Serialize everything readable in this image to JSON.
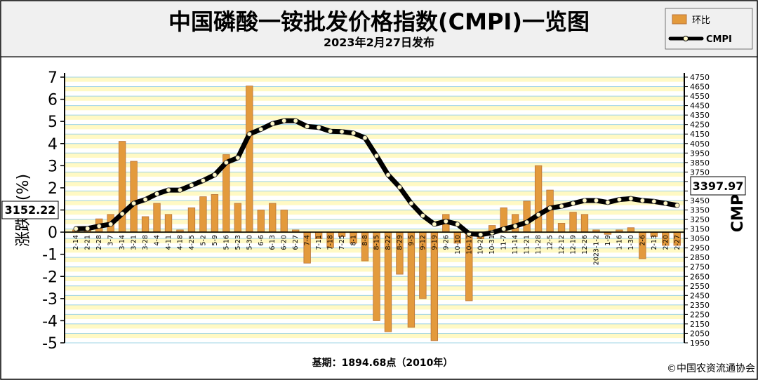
{
  "header": {
    "title": "中国磷酸一铵批发价格指数(CMPI)一览图",
    "subtitle": "2023年2月27日发布"
  },
  "legend": {
    "placement": "top-right",
    "items": [
      {
        "label": "环比",
        "kind": "bar"
      },
      {
        "label": "CMPI",
        "kind": "line"
      }
    ]
  },
  "footer": {
    "base_note": "基期：1894.68点（2010年）",
    "copyright": "©中国农资流通协会"
  },
  "callouts": {
    "left_value": "3152.22",
    "right_value": "3397.97"
  },
  "colors": {
    "title_band": "#f0f0f0",
    "band_yellow": "#fff9c4",
    "band_white": "#ffffff",
    "bar_fill": "#e39a3c",
    "bar_edge": "#b8733a",
    "line": "#000000",
    "marker": "#fff8c8"
  },
  "chart_data": {
    "type": "bar",
    "title": "中国磷酸一铵批发价格指数(CMPI)一览图",
    "ylabel": "涨跌幅(%)",
    "y2label": "CMPI",
    "ylim": [
      -5,
      7
    ],
    "y2lim": [
      1950,
      4750
    ],
    "yticks": [
      "7",
      "6",
      "5",
      "4",
      "3",
      "2",
      "1",
      "0",
      "-1",
      "-2",
      "-3",
      "-4",
      "-5"
    ],
    "y2ticks": [
      "4750",
      "4650",
      "4550",
      "4450",
      "4350",
      "4250",
      "4150",
      "4050",
      "3950",
      "3850",
      "3750",
      "3650",
      "3550",
      "3450",
      "3350",
      "3250",
      "3150",
      "3050",
      "2950",
      "2850",
      "2750",
      "2650",
      "2550",
      "2450",
      "2350",
      "2250",
      "2150",
      "2050",
      "1950"
    ],
    "grid": true,
    "categories": [
      "2-14",
      "2-21",
      "2-28",
      "3-7",
      "3-14",
      "3-21",
      "3-28",
      "4-4",
      "4-11",
      "4-18",
      "4-25",
      "5-2",
      "5-9",
      "5-16",
      "5-23",
      "5-30",
      "6-6",
      "6-13",
      "6-20",
      "6-27",
      "7-4",
      "7-11",
      "7-18",
      "7-25",
      "8-1",
      "8-8",
      "8-15",
      "8-22",
      "8-29",
      "9-5",
      "9-12",
      "9-19",
      "9-26",
      "10-10",
      "10-17",
      "10-24",
      "10-31",
      "11-7",
      "11-14",
      "11-21",
      "11-28",
      "12-5",
      "12-12",
      "12-19",
      "12-26",
      "2023-1-2",
      "1-9",
      "1-16",
      "1-30",
      "2-6",
      "2-13",
      "2-20",
      "2-27"
    ],
    "series": [
      {
        "name": "环比",
        "type": "bar",
        "axis": "left",
        "values": [
          0.1,
          0.2,
          0.6,
          0.8,
          4.1,
          3.2,
          0.7,
          1.3,
          0.8,
          0.1,
          1.1,
          1.6,
          1.7,
          3.5,
          1.3,
          6.6,
          1.0,
          1.3,
          1.0,
          0.1,
          -1.4,
          -0.3,
          -0.7,
          -0.2,
          -0.5,
          -1.3,
          -4.0,
          -4.5,
          -1.9,
          -4.3,
          -3.0,
          -4.9,
          0.8,
          -0.5,
          -3.1,
          -0.3,
          0.3,
          1.1,
          0.8,
          1.4,
          3.0,
          1.9,
          0.4,
          0.9,
          0.8,
          0.1,
          -0.1,
          0.1,
          0.2,
          -1.2,
          -0.2,
          -0.6,
          -0.6
        ]
      },
      {
        "name": "CMPI",
        "type": "line",
        "axis": "right",
        "values": [
          3152.22,
          3155,
          3180,
          3200,
          3310,
          3420,
          3460,
          3520,
          3560,
          3560,
          3610,
          3660,
          3720,
          3850,
          3900,
          4150,
          4200,
          4260,
          4290,
          4290,
          4230,
          4220,
          4180,
          4175,
          4160,
          4110,
          3920,
          3720,
          3590,
          3420,
          3290,
          3200,
          3230,
          3200,
          3100,
          3090,
          3110,
          3150,
          3180,
          3220,
          3300,
          3370,
          3390,
          3420,
          3450,
          3450,
          3430,
          3460,
          3470,
          3450,
          3440,
          3420,
          3397.97
        ]
      }
    ]
  }
}
